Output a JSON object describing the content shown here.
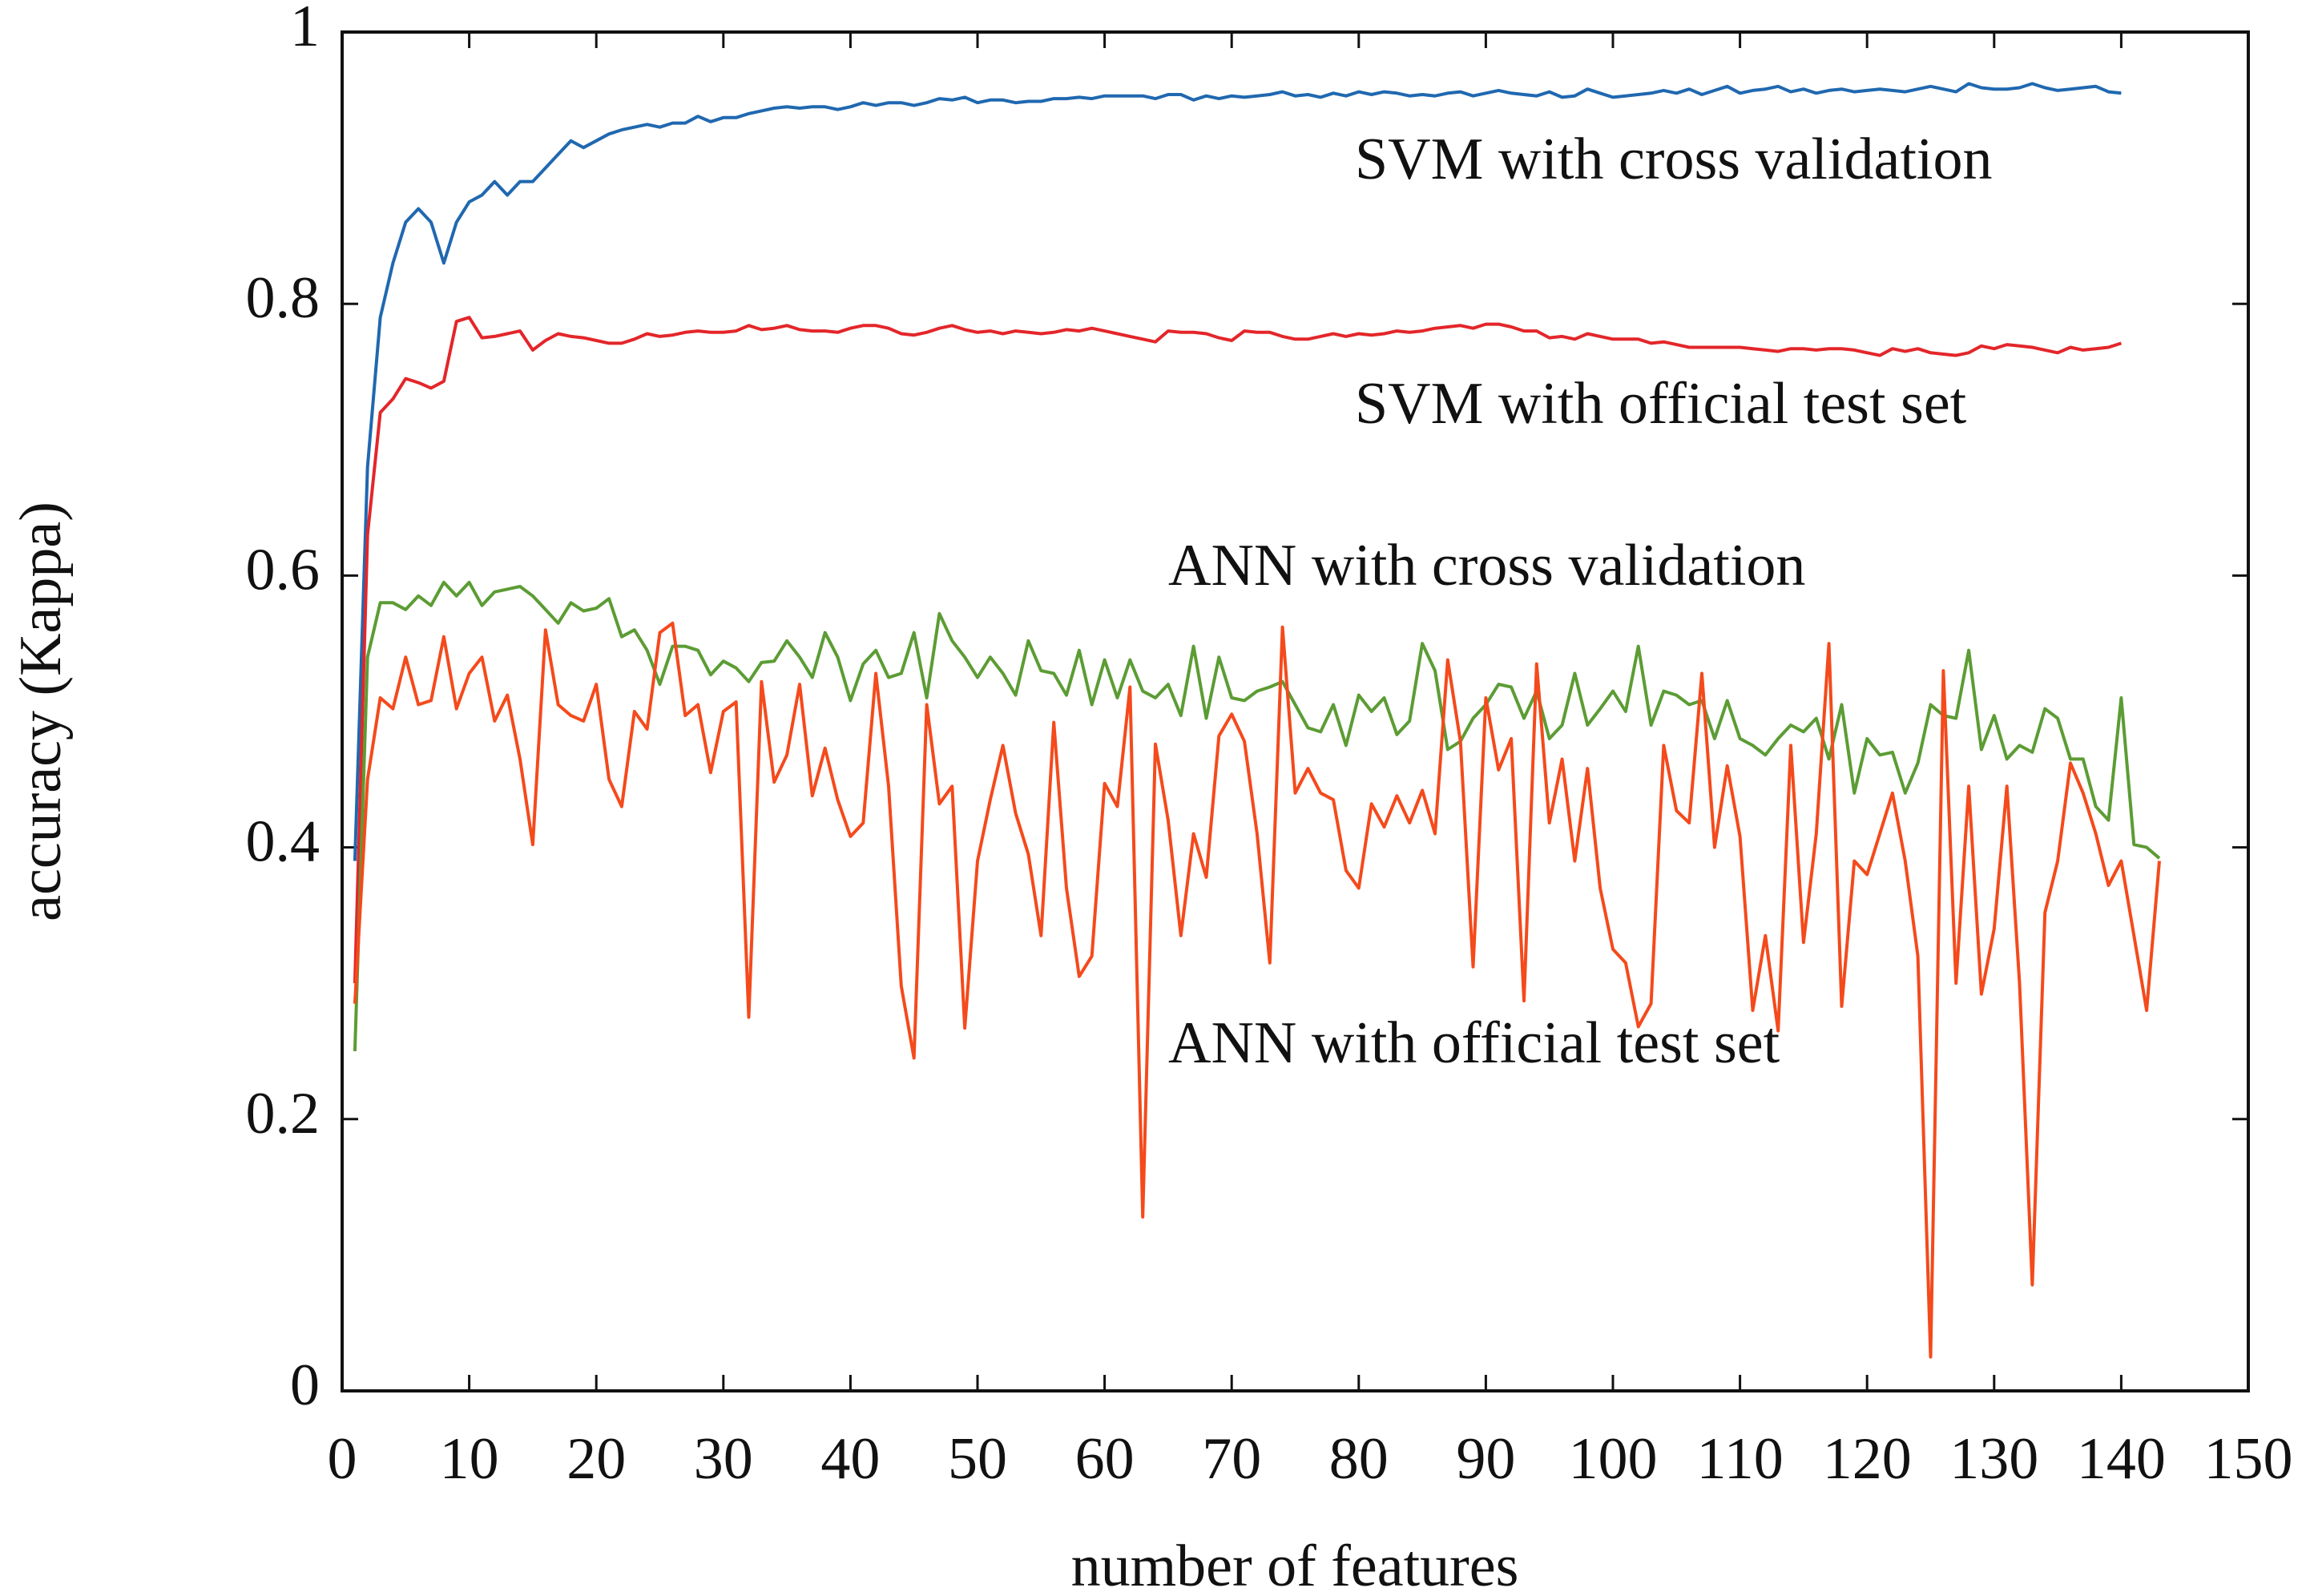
{
  "chart_data": {
    "type": "line",
    "xlabel": "number of features",
    "ylabel": "accuracy (Kappa)",
    "xlim": [
      0,
      150
    ],
    "xticks": [
      0,
      10,
      20,
      30,
      40,
      50,
      60,
      70,
      80,
      90,
      100,
      110,
      120,
      130,
      140,
      150
    ],
    "ylim": [
      0,
      1
    ],
    "yticks": [
      0,
      0.2,
      0.4,
      0.6,
      0.8,
      1
    ],
    "grid": false,
    "annotations": [
      "SVM with cross validation",
      "SVM with official test set",
      "ANN with cross validation",
      "ANN with official test set"
    ],
    "x": [
      1,
      2,
      3,
      4,
      5,
      6,
      7,
      8,
      9,
      10,
      11,
      12,
      13,
      14,
      15,
      16,
      17,
      18,
      19,
      20,
      21,
      22,
      23,
      24,
      25,
      26,
      27,
      28,
      29,
      30,
      31,
      32,
      33,
      34,
      35,
      36,
      37,
      38,
      39,
      40,
      41,
      42,
      43,
      44,
      45,
      46,
      47,
      48,
      49,
      50,
      51,
      52,
      53,
      54,
      55,
      56,
      57,
      58,
      59,
      60,
      61,
      62,
      63,
      64,
      65,
      66,
      67,
      68,
      69,
      70,
      71,
      72,
      73,
      74,
      75,
      76,
      77,
      78,
      79,
      80,
      81,
      82,
      83,
      84,
      85,
      86,
      87,
      88,
      89,
      90,
      91,
      92,
      93,
      94,
      95,
      96,
      97,
      98,
      99,
      100,
      101,
      102,
      103,
      104,
      105,
      106,
      107,
      108,
      109,
      110,
      111,
      112,
      113,
      114,
      115,
      116,
      117,
      118,
      119,
      120,
      121,
      122,
      123,
      124,
      125,
      126,
      127,
      128,
      129,
      130,
      131,
      132,
      133,
      134,
      135,
      136,
      137,
      138,
      139,
      140,
      141,
      142,
      143
    ],
    "series": [
      {
        "name": "SVM with cross validation",
        "color": "#2068b0",
        "values": [
          0.39,
          0.68,
          0.79,
          0.83,
          0.86,
          0.87,
          0.86,
          0.83,
          0.86,
          0.875,
          0.88,
          0.89,
          0.88,
          0.89,
          0.89,
          0.9,
          0.91,
          0.92,
          0.915,
          0.92,
          0.925,
          0.928,
          0.93,
          0.932,
          0.93,
          0.933,
          0.933,
          0.938,
          0.934,
          0.937,
          0.937,
          0.94,
          0.942,
          0.944,
          0.945,
          0.944,
          0.945,
          0.945,
          0.943,
          0.945,
          0.948,
          0.946,
          0.948,
          0.948,
          0.946,
          0.948,
          0.951,
          0.95,
          0.952,
          0.948,
          0.95,
          0.95,
          0.948,
          0.949,
          0.949,
          0.951,
          0.951,
          0.952,
          0.951,
          0.953,
          0.953,
          0.953,
          0.953,
          0.951,
          0.954,
          0.954,
          0.95,
          0.953,
          0.951,
          0.953,
          0.952,
          0.953,
          0.954,
          0.956,
          0.953,
          0.954,
          0.952,
          0.955,
          0.953,
          0.956,
          0.954,
          0.956,
          0.955,
          0.953,
          0.954,
          0.953,
          0.955,
          0.956,
          0.953,
          0.955,
          0.957,
          0.955,
          0.954,
          0.953,
          0.956,
          0.952,
          0.953,
          0.958,
          0.955,
          0.952,
          0.953,
          0.954,
          0.955,
          0.957,
          0.955,
          0.958,
          0.954,
          0.957,
          0.96,
          0.955,
          0.957,
          0.958,
          0.96,
          0.956,
          0.958,
          0.955,
          0.957,
          0.958,
          0.956,
          0.957,
          0.958,
          0.957,
          0.956,
          0.958,
          0.96,
          0.958,
          0.956,
          0.962,
          0.959,
          0.958,
          0.958,
          0.959,
          0.962,
          0.959,
          0.957,
          0.958,
          0.959,
          0.96,
          0.956,
          0.955,
          null,
          null,
          null
        ]
      },
      {
        "name": "SVM with official test set",
        "color": "#e3262a",
        "values": [
          0.3,
          0.63,
          0.72,
          0.73,
          0.745,
          0.742,
          0.738,
          0.743,
          0.787,
          0.79,
          0.775,
          0.776,
          0.778,
          0.78,
          0.766,
          0.773,
          0.778,
          0.776,
          0.775,
          0.773,
          0.771,
          0.771,
          0.774,
          0.778,
          0.776,
          0.777,
          0.779,
          0.78,
          0.779,
          0.779,
          0.78,
          0.784,
          0.781,
          0.782,
          0.784,
          0.781,
          0.78,
          0.78,
          0.779,
          0.782,
          0.784,
          0.784,
          0.782,
          0.778,
          0.777,
          0.779,
          0.782,
          0.784,
          0.781,
          0.779,
          0.78,
          0.778,
          0.78,
          0.779,
          0.778,
          0.779,
          0.781,
          0.78,
          0.782,
          0.78,
          0.778,
          0.776,
          0.774,
          0.772,
          0.78,
          0.779,
          0.779,
          0.778,
          0.775,
          0.773,
          0.78,
          0.779,
          0.779,
          0.776,
          0.774,
          0.774,
          0.776,
          0.778,
          0.776,
          0.778,
          0.777,
          0.778,
          0.78,
          0.779,
          0.78,
          0.782,
          0.783,
          0.784,
          0.782,
          0.785,
          0.785,
          0.783,
          0.78,
          0.78,
          0.775,
          0.776,
          0.774,
          0.778,
          0.776,
          0.774,
          0.774,
          0.774,
          0.771,
          0.772,
          0.77,
          0.768,
          0.768,
          0.768,
          0.768,
          0.768,
          0.767,
          0.766,
          0.765,
          0.767,
          0.767,
          0.766,
          0.767,
          0.767,
          0.766,
          0.764,
          0.762,
          0.767,
          0.765,
          0.767,
          0.764,
          0.763,
          0.762,
          0.764,
          0.769,
          0.767,
          0.77,
          0.769,
          0.768,
          0.766,
          0.764,
          0.768,
          0.766,
          0.767,
          0.768,
          0.771,
          null,
          null,
          null
        ]
      },
      {
        "name": "ANN with cross validation",
        "color": "#5c9c34",
        "values": [
          0.25,
          0.54,
          0.58,
          0.58,
          0.575,
          0.585,
          0.578,
          0.595,
          0.585,
          0.595,
          0.578,
          0.588,
          0.59,
          0.592,
          0.585,
          0.575,
          0.565,
          0.58,
          0.574,
          0.576,
          0.583,
          0.555,
          0.56,
          0.545,
          0.52,
          0.548,
          0.548,
          0.545,
          0.527,
          0.537,
          0.532,
          0.522,
          0.536,
          0.537,
          0.552,
          0.54,
          0.525,
          0.558,
          0.54,
          0.508,
          0.535,
          0.545,
          0.525,
          0.528,
          0.558,
          0.51,
          0.572,
          0.552,
          0.54,
          0.525,
          0.54,
          0.528,
          0.512,
          0.552,
          0.53,
          0.528,
          0.512,
          0.545,
          0.505,
          0.538,
          0.51,
          0.538,
          0.515,
          0.51,
          0.52,
          0.497,
          0.548,
          0.495,
          0.54,
          0.51,
          0.508,
          0.515,
          0.518,
          0.522,
          0.505,
          0.488,
          0.485,
          0.505,
          0.475,
          0.512,
          0.5,
          0.51,
          0.483,
          0.493,
          0.55,
          0.53,
          0.472,
          0.478,
          0.495,
          0.505,
          0.52,
          0.518,
          0.495,
          0.515,
          0.48,
          0.49,
          0.528,
          0.49,
          0.502,
          0.515,
          0.5,
          0.548,
          0.49,
          0.515,
          0.512,
          0.505,
          0.508,
          0.48,
          0.508,
          0.48,
          0.475,
          0.468,
          0.48,
          0.49,
          0.485,
          0.495,
          0.465,
          0.505,
          0.44,
          0.48,
          0.468,
          0.47,
          0.44,
          0.462,
          0.505,
          0.497,
          0.495,
          0.545,
          0.472,
          0.497,
          0.465,
          0.475,
          0.47,
          0.502,
          0.495,
          0.465,
          0.465,
          0.43,
          0.42,
          0.51,
          0.402,
          0.4,
          0.392
        ]
      },
      {
        "name": "ANN with official test set",
        "color": "#f44a1c",
        "values": [
          0.285,
          0.45,
          0.51,
          0.502,
          0.54,
          0.505,
          0.508,
          0.555,
          0.502,
          0.528,
          0.54,
          0.493,
          0.512,
          0.465,
          0.402,
          0.56,
          0.505,
          0.497,
          0.493,
          0.52,
          0.45,
          0.43,
          0.5,
          0.487,
          0.558,
          0.565,
          0.497,
          0.505,
          0.455,
          0.5,
          0.507,
          0.275,
          0.522,
          0.448,
          0.468,
          0.52,
          0.438,
          0.473,
          0.435,
          0.408,
          0.418,
          0.528,
          0.445,
          0.298,
          0.245,
          0.505,
          0.432,
          0.445,
          0.267,
          0.39,
          0.435,
          0.475,
          0.425,
          0.395,
          0.335,
          0.492,
          0.37,
          0.305,
          0.32,
          0.447,
          0.43,
          0.518,
          0.128,
          0.476,
          0.42,
          0.335,
          0.41,
          0.378,
          0.482,
          0.498,
          0.478,
          0.41,
          0.315,
          0.562,
          0.44,
          0.458,
          0.44,
          0.435,
          0.383,
          0.37,
          0.432,
          0.415,
          0.438,
          0.418,
          0.442,
          0.41,
          0.538,
          0.478,
          0.312,
          0.51,
          0.457,
          0.48,
          0.287,
          0.535,
          0.418,
          0.465,
          0.39,
          0.458,
          0.37,
          0.325,
          0.315,
          0.268,
          0.285,
          0.475,
          0.427,
          0.418,
          0.528,
          0.4,
          0.46,
          0.408,
          0.28,
          0.335,
          0.265,
          0.475,
          0.33,
          0.41,
          0.55,
          0.283,
          0.39,
          0.38,
          0.41,
          0.44,
          0.39,
          0.32,
          0.025,
          0.53,
          0.3,
          0.445,
          0.292,
          0.34,
          0.445,
          0.3,
          0.078,
          0.352,
          0.39,
          0.462,
          0.44,
          0.41,
          0.372,
          0.39,
          0.335,
          0.28,
          0.39
        ]
      }
    ]
  }
}
